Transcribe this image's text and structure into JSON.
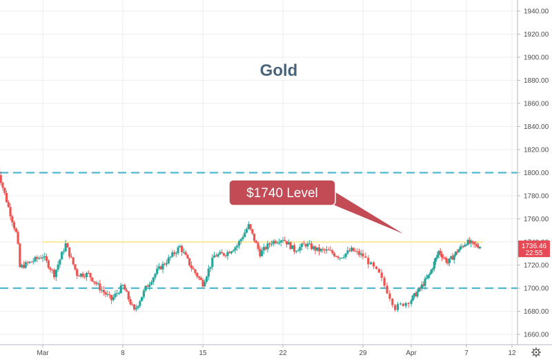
{
  "chart_data": {
    "type": "candlestick",
    "title": "Gold",
    "annotation": "$1740 Level",
    "x_tick_labels": [
      "Mar",
      "8",
      "15",
      "22",
      "29",
      "Apr",
      "7",
      "12"
    ],
    "x_ticks": [
      "2021-03-01",
      "2021-03-08",
      "2021-03-15",
      "2021-03-22",
      "2021-03-29",
      "2021-04-01",
      "2021-04-07",
      "2021-04-12"
    ],
    "y_ticks": [
      1660,
      1680,
      1700,
      1720,
      1740,
      1760,
      1780,
      1800,
      1820,
      1840,
      1860,
      1880,
      1900,
      1920,
      1940
    ],
    "y_tick_labels": [
      "1660.00",
      "1680.00",
      "1700.00",
      "1720.00",
      "1740.00",
      "1760.00",
      "1780.00",
      "1800.00",
      "1820.00",
      "1840.00",
      "1860.00",
      "1880.00",
      "1900.00",
      "1920.00",
      "1940.00"
    ],
    "ylim": [
      1652,
      1960
    ],
    "grid": true,
    "levels": [
      {
        "value": 1800,
        "color": "#4fb8cf",
        "style": "dashed"
      },
      {
        "value": 1700,
        "color": "#4fb8cf",
        "style": "dashed"
      },
      {
        "value": 1740,
        "color": "#f7e27a",
        "style": "solid"
      }
    ],
    "price_label": {
      "value": "1736.46",
      "countdown": "22:55",
      "color": "#e84a55"
    },
    "up_color": "#26a69a",
    "down_color": "#ef5350",
    "annotation_color": "#c24b56",
    "title_color": "#4a6478",
    "close_path": [
      [
        "2021-02-25T00:00",
        1805
      ],
      [
        "2021-02-26T00:00",
        1770
      ],
      [
        "2021-02-26T18:00",
        1745
      ],
      [
        "2021-02-27T00:00",
        1718
      ],
      [
        "2021-03-01T00:00",
        1728
      ],
      [
        "2021-03-02T00:00",
        1712
      ],
      [
        "2021-03-03T00:00",
        1738
      ],
      [
        "2021-03-04T00:00",
        1712
      ],
      [
        "2021-03-05T00:00",
        1712
      ],
      [
        "2021-03-06T00:00",
        1700
      ],
      [
        "2021-03-07T00:00",
        1690
      ],
      [
        "2021-03-08T00:00",
        1702
      ],
      [
        "2021-03-09T00:00",
        1680
      ],
      [
        "2021-03-10T00:00",
        1700
      ],
      [
        "2021-03-11T00:00",
        1715
      ],
      [
        "2021-03-12T00:00",
        1725
      ],
      [
        "2021-03-13T00:00",
        1736
      ],
      [
        "2021-03-14T00:00",
        1718
      ],
      [
        "2021-03-15T00:00",
        1704
      ],
      [
        "2021-03-16T00:00",
        1728
      ],
      [
        "2021-03-17T00:00",
        1730
      ],
      [
        "2021-03-18T00:00",
        1737
      ],
      [
        "2021-03-19T00:00",
        1754
      ],
      [
        "2021-03-20T00:00",
        1730
      ],
      [
        "2021-03-21T00:00",
        1740
      ],
      [
        "2021-03-22T00:00",
        1743
      ],
      [
        "2021-03-23T00:00",
        1733
      ],
      [
        "2021-03-24T00:00",
        1738
      ],
      [
        "2021-03-25T00:00",
        1733
      ],
      [
        "2021-03-26T00:00",
        1732
      ],
      [
        "2021-03-27T00:00",
        1727
      ],
      [
        "2021-03-28T00:00",
        1733
      ],
      [
        "2021-03-29T00:00",
        1728
      ],
      [
        "2021-03-30T00:00",
        1712
      ],
      [
        "2021-03-31T00:00",
        1683
      ],
      [
        "2021-04-01T00:00",
        1690
      ],
      [
        "2021-04-02T00:00",
        1700
      ],
      [
        "2021-04-03T00:00",
        1712
      ],
      [
        "2021-04-04T00:00",
        1732
      ],
      [
        "2021-04-05T00:00",
        1722
      ],
      [
        "2021-04-06T00:00",
        1732
      ],
      [
        "2021-04-07T00:00",
        1740
      ],
      [
        "2021-04-08T00:00",
        1737
      ],
      [
        "2021-04-08T12:00",
        1736.46
      ]
    ]
  }
}
